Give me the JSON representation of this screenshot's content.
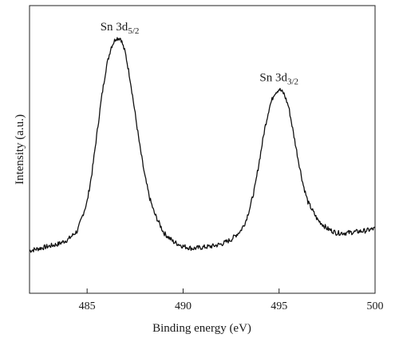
{
  "chart_data": {
    "type": "line",
    "xlabel": "Binding energy (eV)",
    "ylabel": "Intensity (a.u.)",
    "xlim": [
      482,
      500
    ],
    "ylim": [
      0,
      100
    ],
    "x_ticks": [
      485,
      490,
      495,
      500
    ],
    "y_ticks": [],
    "grid": false,
    "series": [
      {
        "x": [
          482.0,
          482.5,
          483.0,
          483.5,
          484.0,
          484.5,
          485.0,
          485.25,
          485.5,
          485.75,
          486.0,
          486.25,
          486.5,
          486.75,
          487.0,
          487.25,
          487.5,
          487.75,
          488.0,
          488.25,
          488.5,
          489.0,
          489.5,
          490.0,
          490.5,
          491.0,
          491.5,
          492.0,
          492.5,
          493.0,
          493.25,
          493.5,
          493.75,
          494.0,
          494.25,
          494.5,
          494.75,
          495.0,
          495.25,
          495.5,
          495.75,
          496.0,
          496.25,
          496.5,
          497.0,
          497.5,
          498.0,
          498.5,
          499.0,
          499.5,
          500.0
        ],
        "y": [
          3.0,
          4.0,
          5.0,
          6.0,
          8.0,
          12.0,
          25.0,
          38.0,
          55.0,
          72.0,
          86.0,
          95.0,
          99.0,
          99.0,
          92.0,
          80.0,
          65.0,
          50.0,
          37.0,
          27.0,
          20.0,
          11.0,
          7.0,
          5.0,
          4.0,
          4.5,
          5.0,
          6.0,
          8.0,
          12.0,
          16.0,
          23.0,
          32.0,
          45.0,
          58.0,
          68.0,
          74.0,
          76.0,
          74.0,
          68.0,
          56.0,
          44.0,
          33.0,
          25.0,
          17.0,
          13.0,
          11.0,
          11.0,
          11.5,
          12.0,
          13.0
        ]
      }
    ],
    "annotations": [
      {
        "base": "Sn 3d",
        "sub": "5/2",
        "x": 486.7,
        "y": 99
      },
      {
        "base": "Sn 3d",
        "sub": "3/2",
        "x": 495.0,
        "y": 76
      }
    ],
    "line_color": "#111111"
  }
}
